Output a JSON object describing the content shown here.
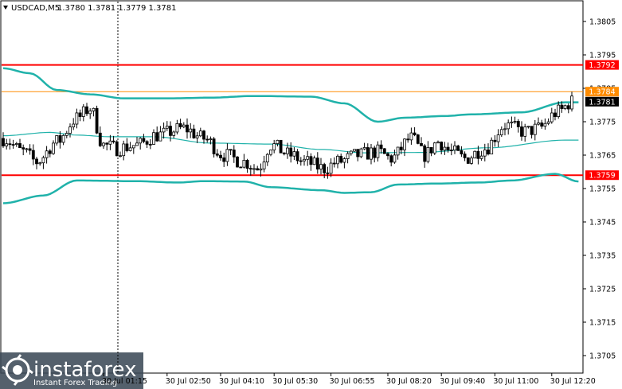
{
  "header": {
    "symbol": "USDCAD,M5",
    "ohlc": "1.3780 1.3781 1.3779 1.3781"
  },
  "watermark": {
    "brand": "instaforex",
    "tagline": "Instant Forex Trading"
  },
  "colors": {
    "background": "#ffffff",
    "bands": "#20b2aa",
    "middle": "#20b2aa",
    "candle": "#000000",
    "resistance": "#ff0000",
    "support": "#ff0000",
    "target": "#ff8c00"
  },
  "chart_data": {
    "type": "candlestick",
    "symbol": "USDCAD",
    "timeframe": "M5",
    "ylim": [
      1.37,
      1.381
    ],
    "y_ticks": [
      "1.3805",
      "1.3795",
      "1.3785",
      "1.3775",
      "1.3765",
      "1.3755",
      "1.3745",
      "1.3735",
      "1.3725",
      "1.3715",
      "1.3705"
    ],
    "y_tick_values": [
      1.3805,
      1.3795,
      1.3785,
      1.3775,
      1.3765,
      1.3755,
      1.3745,
      1.3735,
      1.3725,
      1.3715,
      1.3705
    ],
    "x_ticks": [
      "30 Jul 01:15",
      "30 Jul 02:50",
      "30 Jul 04:10",
      "30 Jul 05:30",
      "30 Jul 06:55",
      "30 Jul 08:20",
      "30 Jul 09:40",
      "30 Jul 11:00",
      "30 Jul 12:20"
    ],
    "x_tick_index": [
      30,
      49,
      65,
      81,
      98,
      115,
      131,
      147,
      164
    ],
    "levels": [
      {
        "label": "1.3792",
        "value": 1.3792,
        "color": "#ff0000"
      },
      {
        "label": "1.3784",
        "value": 1.3784,
        "color": "#ff8c00"
      },
      {
        "label": "1.3759",
        "value": 1.3759,
        "color": "#ff0000"
      }
    ],
    "current_price": {
      "label": "1.3781",
      "value": 1.3781
    },
    "bands_upper_series": [
      [
        0,
        1.3791
      ],
      [
        8,
        1.37895
      ],
      [
        16,
        1.37845
      ],
      [
        26,
        1.37832
      ],
      [
        36,
        1.3782
      ],
      [
        50,
        1.3782
      ],
      [
        62,
        1.37822
      ],
      [
        75,
        1.37827
      ],
      [
        92,
        1.37825
      ],
      [
        102,
        1.37805
      ],
      [
        112,
        1.3775
      ],
      [
        120,
        1.37762
      ],
      [
        132,
        1.37767
      ],
      [
        140,
        1.37772
      ],
      [
        155,
        1.37778
      ],
      [
        168,
        1.37808
      ]
    ],
    "bands_middle_series": [
      [
        0,
        1.37708
      ],
      [
        14,
        1.37718
      ],
      [
        22,
        1.3771
      ],
      [
        32,
        1.37705
      ],
      [
        45,
        1.37705
      ],
      [
        62,
        1.37686
      ],
      [
        80,
        1.37683
      ],
      [
        95,
        1.37667
      ],
      [
        108,
        1.37657
      ],
      [
        125,
        1.37658
      ],
      [
        145,
        1.37672
      ],
      [
        168,
        1.37695
      ]
    ],
    "bands_lower_series": [
      [
        0,
        1.37506
      ],
      [
        12,
        1.37529
      ],
      [
        22,
        1.37574
      ],
      [
        40,
        1.37572
      ],
      [
        52,
        1.37568
      ],
      [
        60,
        1.37572
      ],
      [
        72,
        1.37571
      ],
      [
        80,
        1.37554
      ],
      [
        95,
        1.37545
      ],
      [
        102,
        1.37537
      ],
      [
        110,
        1.37539
      ],
      [
        118,
        1.37562
      ],
      [
        130,
        1.37565
      ],
      [
        142,
        1.37568
      ],
      [
        152,
        1.37574
      ],
      [
        165,
        1.37594
      ],
      [
        172,
        1.37571
      ]
    ],
    "close_series": [
      [
        0,
        1.377
      ],
      [
        6,
        1.3766
      ],
      [
        10,
        1.3763
      ],
      [
        16,
        1.3769
      ],
      [
        22,
        1.3776
      ],
      [
        26,
        1.3779
      ],
      [
        30,
        1.3768
      ],
      [
        34,
        1.3767
      ],
      [
        40,
        1.3768
      ],
      [
        46,
        1.3771
      ],
      [
        54,
        1.3773
      ],
      [
        60,
        1.377
      ],
      [
        66,
        1.3765
      ],
      [
        72,
        1.3763
      ],
      [
        76,
        1.3761
      ],
      [
        80,
        1.3768
      ],
      [
        86,
        1.3765
      ],
      [
        90,
        1.3763
      ],
      [
        96,
        1.3761
      ],
      [
        100,
        1.3763
      ],
      [
        106,
        1.3765
      ],
      [
        112,
        1.3766
      ],
      [
        116,
        1.3764
      ],
      [
        122,
        1.377
      ],
      [
        126,
        1.3765
      ],
      [
        130,
        1.3769
      ],
      [
        134,
        1.3766
      ],
      [
        138,
        1.3764
      ],
      [
        144,
        1.3767
      ],
      [
        150,
        1.3774
      ],
      [
        156,
        1.3772
      ],
      [
        160,
        1.3773
      ],
      [
        166,
        1.3778
      ],
      [
        170,
        1.3781
      ]
    ],
    "grid": false,
    "legend": "none",
    "annotation": "vertical dotted cursor line"
  }
}
